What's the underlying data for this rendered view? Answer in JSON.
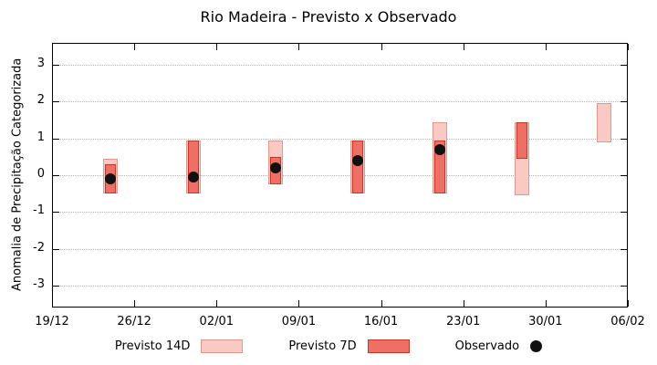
{
  "chart_data": {
    "type": "bar",
    "subtype": "range-bars-with-observed-points",
    "title": "Rio Madeira - Previsto x Observado",
    "ylabel": "Anomalia de Precipitação Categorizada",
    "ylim": [
      -3.6,
      3.6
    ],
    "yticks": [
      -3,
      -2,
      -1,
      0,
      1,
      2,
      3
    ],
    "grid": "horizontal-dotted",
    "legend_position": "bottom",
    "x_axis": {
      "tick_labels": [
        "19/12",
        "26/12",
        "02/01",
        "09/01",
        "16/01",
        "23/01",
        "30/01",
        "06/02"
      ],
      "tick_days": [
        0,
        7,
        14,
        21,
        28,
        35,
        42,
        49
      ],
      "range_days": [
        0,
        49
      ]
    },
    "series_labels": {
      "p14": "Previsto 14D",
      "p7": "Previsto 7D",
      "obs": "Observado"
    },
    "points": [
      {
        "day": 5,
        "p14": [
          -0.45,
          0.45
        ],
        "p7": [
          -0.45,
          0.3
        ],
        "obs": -0.1
      },
      {
        "day": 12,
        "p14": [
          -0.45,
          0.95
        ],
        "p7": [
          -0.45,
          0.95
        ],
        "obs": -0.05
      },
      {
        "day": 19,
        "p14": [
          -0.2,
          0.95
        ],
        "p7": [
          -0.2,
          0.5
        ],
        "obs": 0.2
      },
      {
        "day": 26,
        "p14": [
          -0.45,
          0.95
        ],
        "p7": [
          -0.45,
          0.95
        ],
        "obs": 0.4
      },
      {
        "day": 33,
        "p14": [
          -0.45,
          1.45
        ],
        "p7": [
          -0.45,
          0.95
        ],
        "obs": 0.7
      },
      {
        "day": 40,
        "p14": [
          -0.5,
          1.45
        ],
        "p7": [
          0.5,
          1.45
        ],
        "obs": null
      },
      {
        "day": 47,
        "p14": [
          0.95,
          1.95
        ],
        "p7": null,
        "obs": null
      }
    ],
    "colors": {
      "p14_fill": "#f9c9c3",
      "p14_border": "#e8958c",
      "p7_fill": "#ee6f66",
      "p7_border": "#c0392b",
      "observed": "#111111",
      "grid": "#b5b5b5",
      "frame": "#000000"
    }
  }
}
